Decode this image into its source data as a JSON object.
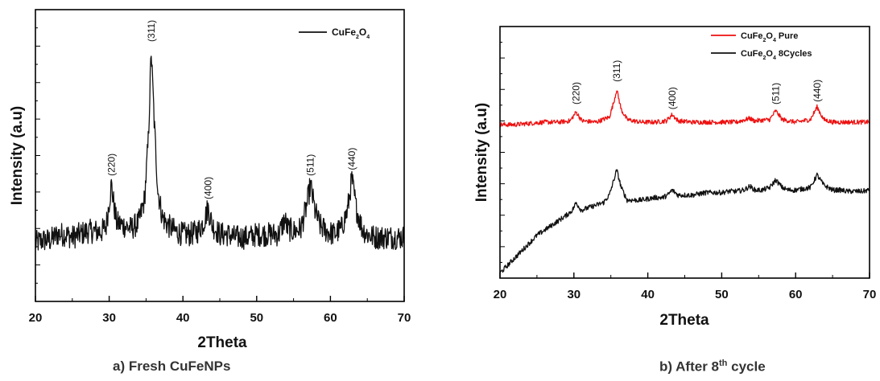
{
  "chart_data": [
    {
      "panel_id": "a",
      "type": "line",
      "title": "",
      "xlabel": "2Theta",
      "ylabel": "Intensity (a.u)",
      "xlim": [
        20,
        70
      ],
      "ylim": [
        0,
        100
      ],
      "x_ticks": [
        20,
        30,
        40,
        50,
        60,
        70
      ],
      "y_ticks_shown_as_unlabeled": true,
      "grid": false,
      "legend_position": "top-right",
      "series": [
        {
          "name_parts": [
            "CuFe",
            "2",
            "O",
            "4",
            ""
          ],
          "color": "#111111",
          "noise": 4.2,
          "points": [
            [
              20,
              20
            ],
            [
              21,
              21
            ],
            [
              22,
              21
            ],
            [
              23,
              23
            ],
            [
              24,
              23
            ],
            [
              25,
              22
            ],
            [
              26,
              23
            ],
            [
              27,
              24
            ],
            [
              28,
              24
            ],
            [
              29,
              24
            ],
            [
              29.6,
              26
            ],
            [
              30.0,
              34
            ],
            [
              30.3,
              40
            ],
            [
              30.6,
              34
            ],
            [
              31.0,
              27
            ],
            [
              32,
              26
            ],
            [
              33,
              25
            ],
            [
              34,
              27
            ],
            [
              34.8,
              35
            ],
            [
              35.3,
              55
            ],
            [
              35.7,
              86
            ],
            [
              36.1,
              62
            ],
            [
              36.6,
              38
            ],
            [
              37.2,
              29
            ],
            [
              38,
              26
            ],
            [
              39,
              24
            ],
            [
              40,
              23
            ],
            [
              41,
              23
            ],
            [
              42,
              24
            ],
            [
              42.8,
              27
            ],
            [
              43.4,
              32
            ],
            [
              44.0,
              26
            ],
            [
              45,
              23
            ],
            [
              46,
              23
            ],
            [
              47,
              22
            ],
            [
              48,
              22
            ],
            [
              49,
              22
            ],
            [
              50,
              23
            ],
            [
              51,
              23
            ],
            [
              52,
              23
            ],
            [
              53,
              23
            ],
            [
              53.8,
              28
            ],
            [
              54.2,
              25
            ],
            [
              55,
              24
            ],
            [
              56,
              25
            ],
            [
              56.8,
              33
            ],
            [
              57.3,
              40
            ],
            [
              57.9,
              31
            ],
            [
              58.6,
              26
            ],
            [
              59.5,
              24
            ],
            [
              60.5,
              23
            ],
            [
              61.5,
              25
            ],
            [
              62.3,
              31
            ],
            [
              62.9,
              42
            ],
            [
              63.5,
              32
            ],
            [
              64.3,
              25
            ],
            [
              65,
              23
            ],
            [
              66,
              22
            ],
            [
              67,
              22
            ],
            [
              68,
              22
            ],
            [
              69,
              22
            ],
            [
              70,
              22
            ]
          ]
        }
      ],
      "peak_labels": [
        {
          "text": "(220)",
          "x": 30.3,
          "y": 43
        },
        {
          "text": "(311)",
          "x": 35.7,
          "y": 89
        },
        {
          "text": "(400)",
          "x": 43.4,
          "y": 35
        },
        {
          "text": "(511)",
          "x": 57.3,
          "y": 43
        },
        {
          "text": "(440)",
          "x": 62.9,
          "y": 45
        }
      ]
    },
    {
      "panel_id": "b",
      "type": "line",
      "title": "",
      "xlabel": "2Theta",
      "ylabel": "Intensity (a.u)",
      "xlim": [
        20,
        70
      ],
      "ylim": [
        0,
        100
      ],
      "x_ticks": [
        20,
        30,
        40,
        50,
        60,
        70
      ],
      "y_ticks_shown_as_unlabeled": true,
      "grid": false,
      "legend_position": "top-right",
      "series": [
        {
          "name_parts": [
            "CuFe",
            "2",
            "O",
            "4",
            " Pure"
          ],
          "color": "#ee1111",
          "noise": 0.9,
          "points": [
            [
              20,
              61
            ],
            [
              22,
              61
            ],
            [
              24,
              61.5
            ],
            [
              26,
              62
            ],
            [
              28,
              62
            ],
            [
              29.5,
              62.5
            ],
            [
              30.3,
              66
            ],
            [
              31.1,
              62.5
            ],
            [
              33,
              62
            ],
            [
              34.8,
              64
            ],
            [
              35.4,
              70
            ],
            [
              35.8,
              75
            ],
            [
              36.4,
              67
            ],
            [
              37.2,
              63
            ],
            [
              39,
              62
            ],
            [
              41,
              62
            ],
            [
              42.5,
              62.5
            ],
            [
              43.3,
              65
            ],
            [
              44.1,
              62.5
            ],
            [
              46,
              62
            ],
            [
              48,
              62
            ],
            [
              50,
              62
            ],
            [
              52,
              62
            ],
            [
              53.8,
              63.5
            ],
            [
              54.4,
              62.5
            ],
            [
              56.5,
              63
            ],
            [
              57.3,
              66.5
            ],
            [
              58.2,
              63
            ],
            [
              60,
              62
            ],
            [
              62,
              63
            ],
            [
              62.9,
              68
            ],
            [
              63.8,
              63
            ],
            [
              65,
              62
            ],
            [
              67,
              62
            ],
            [
              70,
              62
            ]
          ]
        },
        {
          "name_parts": [
            "CuFe",
            "2",
            "O",
            "4",
            " 8Cycles"
          ],
          "color": "#111111",
          "noise": 1.0,
          "points": [
            [
              20,
              2
            ],
            [
              21,
              5
            ],
            [
              22,
              8
            ],
            [
              23,
              11
            ],
            [
              24,
              14
            ],
            [
              25,
              17
            ],
            [
              26,
              19
            ],
            [
              27,
              21
            ],
            [
              28,
              23
            ],
            [
              29,
              25
            ],
            [
              29.8,
              27
            ],
            [
              30.3,
              30
            ],
            [
              31,
              27
            ],
            [
              32,
              28
            ],
            [
              33,
              29
            ],
            [
              34,
              30
            ],
            [
              34.8,
              33
            ],
            [
              35.4,
              39
            ],
            [
              35.8,
              43
            ],
            [
              36.4,
              36
            ],
            [
              37.2,
              31
            ],
            [
              38,
              31
            ],
            [
              39,
              31
            ],
            [
              40,
              31.5
            ],
            [
              41,
              32
            ],
            [
              42,
              32
            ],
            [
              42.7,
              33
            ],
            [
              43.3,
              35
            ],
            [
              44.1,
              33
            ],
            [
              45,
              33
            ],
            [
              46,
              33
            ],
            [
              47,
              33.5
            ],
            [
              48,
              34
            ],
            [
              49,
              34
            ],
            [
              50,
              34
            ],
            [
              51,
              34.5
            ],
            [
              52,
              34.5
            ],
            [
              53,
              35
            ],
            [
              53.8,
              36.5
            ],
            [
              54.5,
              35
            ],
            [
              55.5,
              35
            ],
            [
              56.5,
              36
            ],
            [
              57.3,
              39
            ],
            [
              58.2,
              36
            ],
            [
              59,
              35
            ],
            [
              60,
              35
            ],
            [
              61,
              35.5
            ],
            [
              62,
              36
            ],
            [
              62.9,
              41
            ],
            [
              63.8,
              37
            ],
            [
              65,
              35
            ],
            [
              66,
              35
            ],
            [
              67,
              34.5
            ],
            [
              68,
              34.5
            ],
            [
              69,
              34.5
            ],
            [
              70,
              35
            ]
          ]
        }
      ],
      "peak_labels": [
        {
          "text": "(220)",
          "x": 30.3,
          "y": 69
        },
        {
          "text": "(311)",
          "x": 35.8,
          "y": 78
        },
        {
          "text": "(400)",
          "x": 43.3,
          "y": 67
        },
        {
          "text": "(511)",
          "x": 57.3,
          "y": 69
        },
        {
          "text": "(440)",
          "x": 62.9,
          "y": 70
        }
      ]
    }
  ],
  "captions": {
    "a": "a) Fresh CuFeNPs",
    "b_prefix": "b) After 8",
    "b_sup": "th",
    "b_suffix": " cycle"
  }
}
